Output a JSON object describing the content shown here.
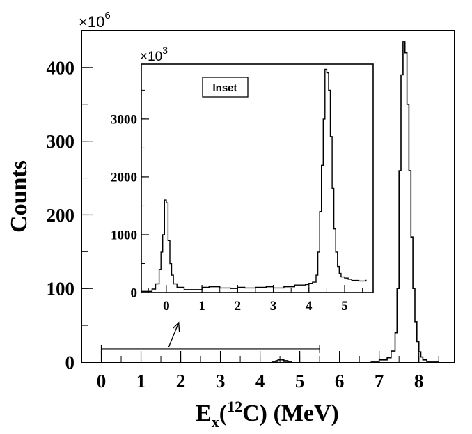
{
  "chart_data": [
    {
      "type": "line",
      "role": "main",
      "title": "",
      "xlabel": "E",
      "xlabel_sub": "x",
      "xlabel_mid": "(",
      "xlabel_sup": "12",
      "xlabel_tail": "C) (MeV)",
      "ylabel": "Counts",
      "y_multiplier_base": "×10",
      "y_multiplier_exp": "6",
      "xlim": [
        -0.5,
        8.9
      ],
      "ylim": [
        0,
        450
      ],
      "xticks": [
        0,
        1,
        2,
        3,
        4,
        5,
        6,
        7,
        8
      ],
      "xtick_labels": [
        "0",
        "1",
        "2",
        "3",
        "4",
        "5",
        "6",
        "7",
        "8"
      ],
      "yticks": [
        0,
        100,
        200,
        300,
        400
      ],
      "ytick_labels": [
        "0",
        "100",
        "200",
        "300",
        "400"
      ],
      "grid": false,
      "series": [
        {
          "style": "step",
          "x": [
            -0.3,
            4.3,
            4.4,
            4.45,
            4.5,
            4.55,
            4.6,
            4.7,
            4.8,
            6.6,
            6.8,
            7.0,
            7.2,
            7.3,
            7.4,
            7.45,
            7.5,
            7.55,
            7.6,
            7.65,
            7.7,
            7.75,
            7.8,
            7.85,
            7.9,
            7.95,
            8.0,
            8.05,
            8.1,
            8.2,
            8.5
          ],
          "y": [
            0,
            1,
            2,
            3,
            4,
            3,
            2,
            1,
            0,
            0,
            1,
            3,
            6,
            15,
            40,
            100,
            260,
            390,
            435,
            420,
            350,
            260,
            170,
            100,
            55,
            28,
            14,
            7,
            3,
            1,
            0
          ]
        }
      ]
    },
    {
      "type": "line",
      "role": "inset",
      "title": "",
      "legend_box": "Inset",
      "y_multiplier_base": "×10",
      "y_multiplier_exp": "3",
      "xlim": [
        -0.7,
        5.8
      ],
      "ylim": [
        0,
        3950
      ],
      "xticks": [
        0,
        1,
        2,
        3,
        4,
        5
      ],
      "xtick_labels": [
        "0",
        "1",
        "2",
        "3",
        "4",
        "5"
      ],
      "yticks": [
        0,
        1000,
        2000,
        3000
      ],
      "ytick_labels": [
        "0",
        "1000",
        "2000",
        "3000"
      ],
      "grid": false,
      "series": [
        {
          "style": "step",
          "x": [
            -0.7,
            -0.4,
            -0.3,
            -0.2,
            -0.15,
            -0.1,
            -0.05,
            0.0,
            0.05,
            0.1,
            0.15,
            0.2,
            0.3,
            0.5,
            0.8,
            1.0,
            1.2,
            1.5,
            1.8,
            2.0,
            2.2,
            2.5,
            2.8,
            3.0,
            3.3,
            3.6,
            3.9,
            4.0,
            4.1,
            4.2,
            4.25,
            4.3,
            4.35,
            4.4,
            4.45,
            4.5,
            4.55,
            4.6,
            4.65,
            4.7,
            4.75,
            4.8,
            4.85,
            4.9,
            5.0,
            5.1,
            5.2,
            5.4,
            5.6
          ],
          "y": [
            20,
            60,
            150,
            400,
            700,
            1000,
            1600,
            1550,
            900,
            500,
            300,
            150,
            90,
            50,
            50,
            90,
            100,
            80,
            70,
            90,
            80,
            90,
            100,
            80,
            100,
            130,
            140,
            160,
            180,
            300,
            700,
            1400,
            2200,
            3000,
            3860,
            3800,
            3500,
            2700,
            1800,
            1100,
            700,
            450,
            330,
            270,
            250,
            230,
            210,
            200,
            220
          ]
        }
      ]
    }
  ],
  "annotation": {
    "bracket_from": 0.0,
    "bracket_to": 5.5,
    "bracket_y": 18,
    "arrow": "up"
  }
}
